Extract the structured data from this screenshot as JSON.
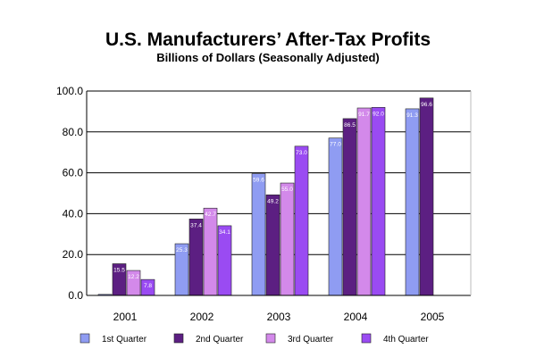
{
  "chart_data": {
    "type": "bar",
    "title": "U.S. Manufacturers’ After-Tax Profits",
    "subtitle": "Billions of Dollars (Seasonally Adjusted)",
    "xlabel": "",
    "ylabel": "",
    "categories": [
      "2001",
      "2002",
      "2003",
      "2004",
      "2005"
    ],
    "ylim": [
      0,
      100
    ],
    "yticks": [
      "0.0",
      "20.0",
      "40.0",
      "60.0",
      "80.0",
      "100.0"
    ],
    "grid": true,
    "legend_position": "bottom",
    "series": [
      {
        "name": "1st Quarter",
        "color": "#8f9cf2",
        "values": [
          0.5,
          25.3,
          59.6,
          77.0,
          91.3
        ],
        "labels": [
          "",
          "25.3",
          "59.6",
          "77.0",
          "91.3"
        ]
      },
      {
        "name": "2nd Quarter",
        "color": "#5c1f82",
        "values": [
          15.5,
          37.4,
          49.2,
          86.5,
          96.6
        ],
        "labels": [
          "15.5",
          "37.4",
          "49.2",
          "86.5",
          "96.6"
        ]
      },
      {
        "name": "3rd Quarter",
        "color": "#d389ea",
        "values": [
          12.2,
          42.7,
          55.0,
          91.7,
          null
        ],
        "labels": [
          "12.2",
          "42.7",
          "55.0",
          "91.7",
          ""
        ]
      },
      {
        "name": "4th Quarter",
        "color": "#9a4bf2",
        "values": [
          7.8,
          34.1,
          73.0,
          92.0,
          null
        ],
        "labels": [
          "7.8",
          "34.1",
          "73.0",
          "92.0",
          ""
        ]
      }
    ]
  }
}
